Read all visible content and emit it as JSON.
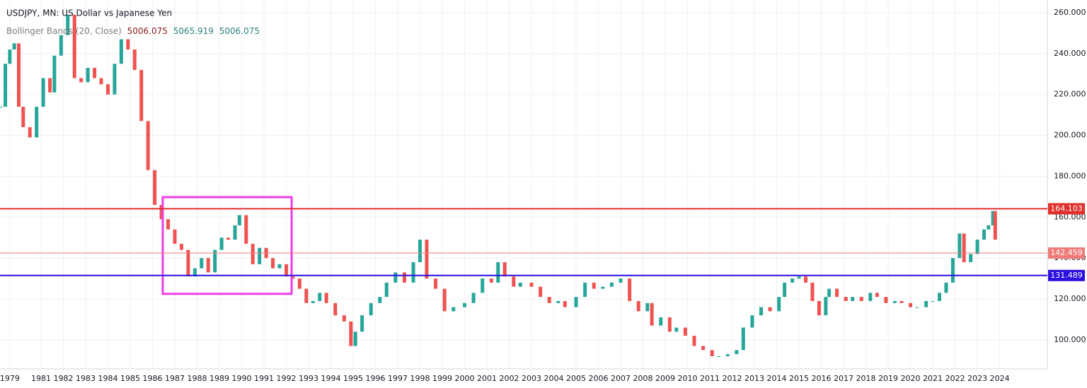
{
  "chart_data": {
    "type": "candlestick",
    "title": "USDJPY, MN: US Dollar vs Japanese Yen",
    "indicator": {
      "name": "Bollinger Bands (20, Close)",
      "values": [
        "5006.075",
        "5065.919",
        "5006.075"
      ],
      "colors": [
        "#8b1a1a",
        "#2a7f7a",
        "#2a7f7a"
      ]
    },
    "x": [
      1979.2,
      1979.4,
      1979.6,
      1979.8,
      1980.0,
      1980.2,
      1980.5,
      1980.8,
      1981.1,
      1981.4,
      1981.6,
      1981.9,
      1982.2,
      1982.5,
      1982.8,
      1983.1,
      1983.4,
      1983.7,
      1984.0,
      1984.3,
      1984.6,
      1984.9,
      1985.2,
      1985.5,
      1985.8,
      1986.1,
      1986.4,
      1986.7,
      1987.0,
      1987.3,
      1987.6,
      1987.9,
      1988.2,
      1988.5,
      1988.8,
      1989.1,
      1989.4,
      1989.7,
      1989.9,
      1990.2,
      1990.5,
      1990.8,
      1991.1,
      1991.4,
      1991.7,
      1992.0,
      1992.3,
      1992.6,
      1992.9,
      1993.2,
      1993.5,
      1993.8,
      1994.2,
      1994.6,
      1994.9,
      1995.1,
      1995.4,
      1995.8,
      1996.2,
      1996.5,
      1996.9,
      1997.3,
      1997.7,
      1998.0,
      1998.3,
      1998.7,
      1999.1,
      1999.5,
      2000.0,
      2000.4,
      2000.8,
      2001.2,
      2001.5,
      2001.8,
      2002.2,
      2002.5,
      2003.0,
      2003.4,
      2003.8,
      2004.2,
      2004.5,
      2005.0,
      2005.4,
      2005.8,
      2006.2,
      2006.6,
      2007.0,
      2007.4,
      2007.8,
      2008.2,
      2008.4,
      2008.8,
      2009.2,
      2009.5,
      2009.9,
      2010.3,
      2010.7,
      2011.1,
      2011.4,
      2011.8,
      2012.2,
      2012.5,
      2012.9,
      2013.3,
      2013.7,
      2014.1,
      2014.35,
      2014.7,
      2015.0,
      2015.3,
      2015.6,
      2015.9,
      2016.2,
      2016.35,
      2016.7,
      2017.1,
      2017.4,
      2017.8,
      2018.2,
      2018.5,
      2018.9,
      2019.3,
      2019.6,
      2020.0,
      2020.3,
      2020.7,
      2021.0,
      2021.3,
      2021.6,
      2021.9,
      2022.2,
      2022.4,
      2022.7,
      2023.0,
      2023.3,
      2023.5,
      2023.7,
      2023.8
    ],
    "series": [
      {
        "name": "USDJPY",
        "up_color": "#26a69a",
        "down_color": "#ef5350",
        "values": [
          214,
          235,
          242,
          245,
          214,
          204,
          199,
          214,
          228,
          221,
          239,
          249,
          259,
          228,
          226,
          233,
          228,
          225,
          220,
          235,
          247,
          242,
          232,
          207,
          183,
          166,
          159,
          154,
          147,
          144,
          131,
          135,
          140,
          133,
          144,
          150,
          149,
          156,
          161,
          147,
          137,
          145,
          140,
          135,
          137,
          131,
          130,
          125,
          118,
          119,
          123,
          118,
          112,
          109,
          97,
          104,
          112,
          118,
          121,
          128,
          133,
          128,
          138,
          149,
          130,
          125,
          114,
          116,
          118,
          123,
          130,
          128,
          138,
          131,
          126,
          128,
          126,
          121,
          118,
          119,
          116,
          121,
          128,
          125,
          126,
          128,
          130,
          119,
          114,
          118,
          107,
          111,
          104,
          106,
          102,
          97,
          95,
          92,
          92,
          93,
          95,
          106,
          112,
          116,
          114,
          121,
          128,
          130,
          131,
          128,
          119,
          112,
          121,
          125,
          121,
          119,
          121,
          119,
          123,
          121,
          118,
          119,
          118,
          116,
          116,
          119,
          119,
          123,
          128,
          140,
          152,
          138,
          142,
          149,
          154,
          156,
          163,
          149
        ]
      }
    ],
    "levels": [
      {
        "value": 164.103,
        "label": "164.103",
        "color": "#e0302b",
        "width": 2
      },
      {
        "value": 142.459,
        "label": "142.459",
        "color": "#ef7b78",
        "width": 1
      },
      {
        "value": 131.489,
        "label": "131.489",
        "color": "#2b0fe0",
        "width": 2
      }
    ],
    "highlight_box": {
      "xlim": [
        1986.46,
        1992.24
      ],
      "ylim": [
        122.5,
        169.8
      ],
      "color": "#ee3de8"
    },
    "xlim": [
      1979.16,
      2026.14
    ],
    "ylim": [
      85.8,
      266.2
    ],
    "xticks": [
      {
        "value": 1979.6,
        "label": "1979"
      },
      1981,
      1982,
      1983,
      1984,
      1985,
      1986,
      1987,
      1988,
      1989,
      1990,
      1991,
      1992,
      1993,
      1994,
      1995,
      1996,
      1997,
      1998,
      1999,
      2000,
      2001,
      2002,
      2003,
      2004,
      2005,
      2006,
      2007,
      2008,
      2009,
      2010,
      2011,
      2012,
      2013,
      2014,
      2015,
      2016,
      2017,
      2018,
      2019,
      2020,
      2021,
      2022,
      2023,
      2024
    ],
    "yticks": [
      {
        "value": 100,
        "label": "100.000"
      },
      {
        "value": 120,
        "label": "120.000"
      },
      {
        "value": 140,
        "label": "140.000"
      },
      {
        "value": 160,
        "label": "160.000"
      },
      {
        "value": 180,
        "label": "180.000"
      },
      {
        "value": 200,
        "label": "200.000"
      },
      {
        "value": 220,
        "label": "220.000"
      },
      {
        "value": 240,
        "label": "240.000"
      },
      {
        "value": 260,
        "label": "260.000"
      }
    ],
    "grid": true
  }
}
